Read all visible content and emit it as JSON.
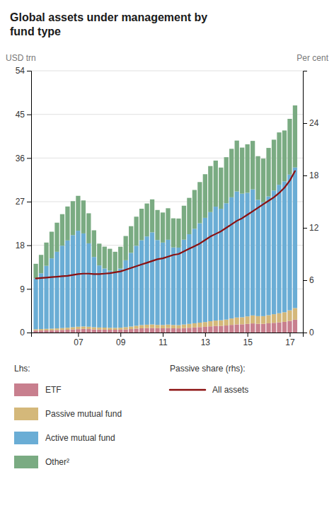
{
  "chart_data": {
    "type": "bar",
    "title": "Global assets under management by\nfund type",
    "ylabel": "USD trn",
    "y2label": "Per cent",
    "annotations": [
      "Lhs:",
      "Passive share (rhs):"
    ],
    "stacked": true,
    "grid": true,
    "legend": "bottom",
    "x": [
      2005.0,
      2005.25,
      2005.5,
      2005.75,
      2006.0,
      2006.25,
      2006.5,
      2006.75,
      2007.0,
      2007.25,
      2007.5,
      2007.75,
      2008.0,
      2008.25,
      2008.5,
      2008.75,
      2009.0,
      2009.25,
      2009.5,
      2009.75,
      2010.0,
      2010.25,
      2010.5,
      2010.75,
      2011.0,
      2011.25,
      2011.5,
      2011.75,
      2012.0,
      2012.25,
      2012.5,
      2012.75,
      2013.0,
      2013.25,
      2013.5,
      2013.75,
      2014.0,
      2014.25,
      2014.5,
      2014.75,
      2015.0,
      2015.25,
      2015.5,
      2015.75,
      2016.0,
      2016.25,
      2016.5,
      2016.75,
      2017.0,
      2017.25
    ],
    "series": [
      {
        "name": "ETF",
        "color": "#c87f8e",
        "type": "bar",
        "values": [
          0.4,
          0.42,
          0.44,
          0.46,
          0.5,
          0.54,
          0.58,
          0.64,
          0.7,
          0.75,
          0.72,
          0.65,
          0.62,
          0.6,
          0.58,
          0.58,
          0.6,
          0.65,
          0.72,
          0.8,
          0.88,
          0.92,
          0.95,
          0.9,
          0.88,
          0.92,
          0.88,
          0.86,
          0.92,
          0.98,
          1.05,
          1.12,
          1.18,
          1.28,
          1.35,
          1.38,
          1.45,
          1.58,
          1.68,
          1.7,
          1.78,
          1.88,
          1.8,
          1.8,
          1.9,
          2.0,
          2.1,
          2.2,
          2.4,
          2.65
        ]
      },
      {
        "name": "Passive mutual fund",
        "color": "#d4b87a",
        "type": "bar",
        "values": [
          0.28,
          0.3,
          0.32,
          0.34,
          0.36,
          0.38,
          0.42,
          0.46,
          0.5,
          0.5,
          0.48,
          0.44,
          0.42,
          0.42,
          0.4,
          0.38,
          0.4,
          0.46,
          0.52,
          0.6,
          0.66,
          0.7,
          0.72,
          0.68,
          0.68,
          0.72,
          0.68,
          0.66,
          0.74,
          0.8,
          0.86,
          0.92,
          0.98,
          1.06,
          1.12,
          1.15,
          1.22,
          1.32,
          1.42,
          1.45,
          1.55,
          1.65,
          1.58,
          1.58,
          1.68,
          1.78,
          1.88,
          1.98,
          2.18,
          2.4
        ]
      },
      {
        "name": "Active mutual fund",
        "color": "#6aadd5",
        "type": "bar",
        "values": [
          10.5,
          11.5,
          13.0,
          14.5,
          15.8,
          17.0,
          18.0,
          19.0,
          19.8,
          19.2,
          17.2,
          14.5,
          12.8,
          12.2,
          11.8,
          11.5,
          12.2,
          13.8,
          15.2,
          16.5,
          17.5,
          18.2,
          19.0,
          17.5,
          17.0,
          17.5,
          16.0,
          16.0,
          17.5,
          18.5,
          19.5,
          20.5,
          21.5,
          22.5,
          23.5,
          23.0,
          24.0,
          25.0,
          26.0,
          25.5,
          25.5,
          26.0,
          24.0,
          23.5,
          24.5,
          25.5,
          26.5,
          27.0,
          28.0,
          29.0
        ]
      },
      {
        "name": "Other²",
        "color": "#7aab82",
        "type": "bar",
        "values": [
          3.0,
          3.8,
          4.8,
          5.5,
          6.0,
          6.5,
          7.0,
          7.0,
          7.2,
          6.8,
          6.2,
          5.5,
          4.5,
          4.5,
          4.5,
          4.2,
          4.5,
          5.0,
          5.5,
          6.0,
          6.5,
          6.8,
          6.8,
          6.2,
          6.2,
          6.5,
          6.0,
          6.0,
          7.0,
          7.5,
          8.0,
          8.5,
          9.0,
          9.5,
          9.5,
          8.5,
          9.5,
          10.0,
          10.5,
          9.5,
          10.0,
          10.0,
          9.0,
          9.0,
          10.0,
          10.5,
          10.8,
          10.5,
          11.5,
          12.8
        ]
      },
      {
        "name": "All assets",
        "color": "#8b1010",
        "type": "line",
        "axis": "y2",
        "values": [
          6.2,
          6.25,
          6.3,
          6.35,
          6.4,
          6.45,
          6.5,
          6.6,
          6.7,
          6.75,
          6.75,
          6.7,
          6.7,
          6.75,
          6.8,
          6.9,
          7.0,
          7.2,
          7.4,
          7.6,
          7.8,
          8.0,
          8.2,
          8.4,
          8.5,
          8.7,
          8.9,
          9.0,
          9.3,
          9.6,
          9.9,
          10.2,
          10.6,
          11.0,
          11.3,
          11.6,
          12.0,
          12.4,
          12.8,
          13.1,
          13.5,
          13.9,
          14.3,
          14.7,
          15.1,
          15.5,
          16.0,
          16.6,
          17.4,
          18.5
        ]
      }
    ],
    "xlim": [
      2004.78,
      2017.62
    ],
    "xticks": [
      {
        "value": 2007.0,
        "label": "07"
      },
      {
        "value": 2009.0,
        "label": "09"
      },
      {
        "value": 2011.0,
        "label": "11"
      },
      {
        "value": 2013.0,
        "label": "13"
      },
      {
        "value": 2015.0,
        "label": "15"
      },
      {
        "value": 2017.0,
        "label": "17"
      }
    ],
    "ylim": [
      0,
      54
    ],
    "yticks": [
      0,
      9,
      18,
      27,
      36,
      45,
      54
    ],
    "y2lim": [
      0,
      30
    ],
    "y2ticks": [
      0,
      6,
      12,
      18,
      24
    ]
  }
}
